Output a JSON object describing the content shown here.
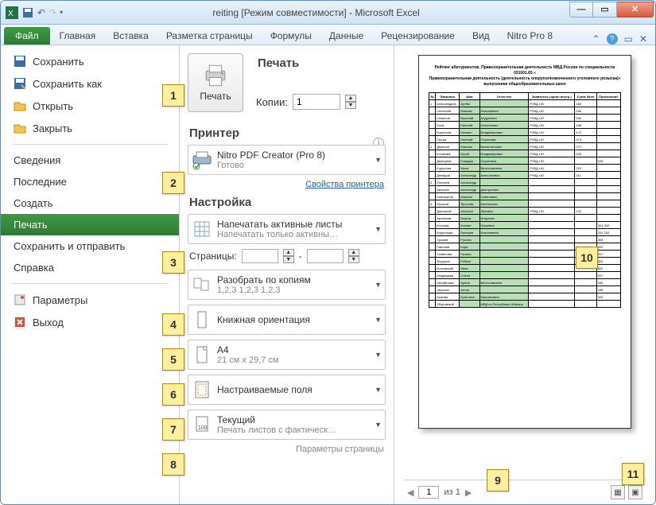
{
  "window": {
    "title": "reiting  [Режим совместимости]  -  Microsoft Excel"
  },
  "ribbon": {
    "file": "Файл",
    "tabs": [
      "Главная",
      "Вставка",
      "Разметка страницы",
      "Формулы",
      "Данные",
      "Рецензирование",
      "Вид",
      "Nitro Pro 8"
    ]
  },
  "left_menu": {
    "items": [
      {
        "label": "Сохранить",
        "icon": "save"
      },
      {
        "label": "Сохранить как",
        "icon": "saveas"
      },
      {
        "label": "Открыть",
        "icon": "open"
      },
      {
        "label": "Закрыть",
        "icon": "close"
      }
    ],
    "sections": [
      "Сведения",
      "Последние",
      "Создать",
      "Печать",
      "Сохранить и отправить",
      "Справка"
    ],
    "footer": [
      {
        "label": "Параметры",
        "icon": "options"
      },
      {
        "label": "Выход",
        "icon": "exit"
      }
    ],
    "selected": "Печать"
  },
  "print_panel": {
    "heading": "Печать",
    "print_button": "Печать",
    "copies_label": "Копии:",
    "copies_value": "1",
    "printer_heading": "Принтер",
    "printer_name": "Nitro PDF Creator (Pro 8)",
    "printer_status": "Готово",
    "printer_props_link": "Свойства принтера",
    "settings_heading": "Настройка",
    "dd_active_sheets": {
      "title": "Напечатать активные листы",
      "sub": "Напечатать только активны…"
    },
    "pages_label": "Страницы:",
    "pages_to": "-",
    "dd_collate": {
      "title": "Разобрать по копиям",
      "sub": "1,2,3   1,2,3   1,2,3"
    },
    "dd_orientation": {
      "title": "Книжная ориентация",
      "sub": ""
    },
    "dd_paper": {
      "title": "A4",
      "sub": "21 см x 29,7 см"
    },
    "dd_margins": {
      "title": "Настраиваемые поля",
      "sub": ""
    },
    "dd_scaling": {
      "title": "Текущий",
      "sub": "Печать листов с фактическ…"
    },
    "page_setup_link": "Параметры страницы"
  },
  "preview": {
    "page_title_lines": [
      "Рейтинг абитуриентов. Правоохранительная деятельность МВД России по специальности 031001.65 «",
      "Правоохранительная деятельность (деятельность оперуполномоченного уголовного розыска)»",
      "выпускники общеобразовательных школ"
    ],
    "columns": [
      "№",
      "Фамилия",
      "Имя",
      "Отчество",
      "Заявитель (орган внутр.)",
      "Сумм балл",
      "Примечание"
    ],
    "rows": [
      [
        "1",
        "Александров",
        "Артём",
        "",
        "РУВД г.Ю",
        "184",
        ""
      ],
      [
        "",
        "Селезнёв",
        "Максим",
        "Николаевич",
        "РУВД г.Ю",
        "280",
        ""
      ],
      [
        "",
        "Семенов",
        "Василий",
        "Андреевич",
        "РУВД г.Ю",
        "260",
        ""
      ],
      [
        "",
        "Ková",
        "Евгений",
        "Алексеевич",
        "РУВД г.Ю",
        "186",
        ""
      ],
      [
        "",
        "Корнилов",
        "Михаил",
        "Владимирович",
        "РУВД г.Ю",
        "172",
        ""
      ],
      [
        "",
        "Гергов",
        "Евгений",
        "Сергеевич",
        "РУВД г.Ю",
        "373",
        ""
      ],
      [
        "2",
        "Дерюгин",
        "Максим",
        "Валентинович",
        "РУВД г.Ю",
        "277",
        ""
      ],
      [
        "",
        "Косикова",
        "Юрий",
        "Владимирович",
        "РУВД г.Ю",
        "205",
        ""
      ],
      [
        "",
        "Дмитриев",
        "Клавдия",
        "Сергеевна",
        "РУВД г.Ю",
        "",
        "225"
      ],
      [
        "",
        "Борисова",
        "Мила",
        "Вячеславовна",
        "РУВД г.Ю",
        "220",
        ""
      ],
      [
        "",
        "Демидов",
        "Александр",
        "Анатольевич",
        "РУВД г.Ю",
        "311",
        ""
      ],
      [
        "3",
        "Елисеев",
        "Александр",
        "",
        "",
        "",
        ""
      ],
      [
        "",
        "Беликов",
        "Александр",
        "Дмитриевич",
        "",
        "",
        ""
      ],
      [
        "",
        "Емельянов",
        "Максим",
        "Семенович",
        "",
        "",
        ""
      ],
      [
        "4",
        "Юрасов",
        "Ярослав",
        "Евгеньевич",
        "",
        "",
        ""
      ],
      [
        "",
        "Даниилов",
        "Алексей",
        "Львович",
        "РУВД г.Ю",
        "191",
        ""
      ],
      [
        "",
        "Артемьев",
        "Никита",
        "Игоревич",
        "",
        "",
        ""
      ],
      [
        "",
        "Козлова",
        "Ксения",
        "Юрьевна",
        "",
        "",
        "324   342"
      ],
      [
        "",
        "Кириллова",
        "Валерия",
        "Николаевна",
        "",
        "",
        "331   332"
      ],
      [
        "",
        "Хромов",
        "Руслан",
        "",
        "",
        "",
        "305"
      ],
      [
        "",
        "Павлова",
        "Кира",
        "",
        "",
        "",
        "322"
      ],
      [
        "",
        "Семёнова",
        "Галина",
        "",
        "",
        "",
        "317"
      ],
      [
        "",
        "Федоров",
        "Роберт",
        "",
        "",
        "",
        "324"
      ],
      [
        "",
        "Козловский",
        "Иван",
        "",
        "",
        "",
        "322"
      ],
      [
        "",
        "Медведева",
        "Олеся",
        "",
        "",
        "",
        "327"
      ],
      [
        "",
        "Михайлова",
        "Арина",
        "Вячеславовна",
        "",
        "",
        "335"
      ],
      [
        "",
        "Черезов",
        "Антон",
        "",
        "",
        "",
        "338"
      ],
      [
        "",
        "Быкова",
        "Кристина",
        "Максимовна",
        "",
        "",
        "320"
      ],
      [
        "",
        "Зборовский",
        "",
        "МВД по Республике Абхазия",
        "",
        "",
        ""
      ]
    ],
    "green_cols": [
      2,
      3
    ],
    "nav": {
      "page": "1",
      "of_label": "из 1"
    }
  },
  "callouts": {
    "1": "1",
    "2": "2",
    "3": "3",
    "4": "4",
    "5": "5",
    "6": "6",
    "7": "7",
    "8": "8",
    "9": "9",
    "10": "10",
    "11": "11"
  },
  "colors": {
    "ribbon_green": "#2e7a34",
    "callout_bg": "#ffef9e",
    "callout_border": "#b38b00",
    "preview_green": "#b7e0b7"
  }
}
